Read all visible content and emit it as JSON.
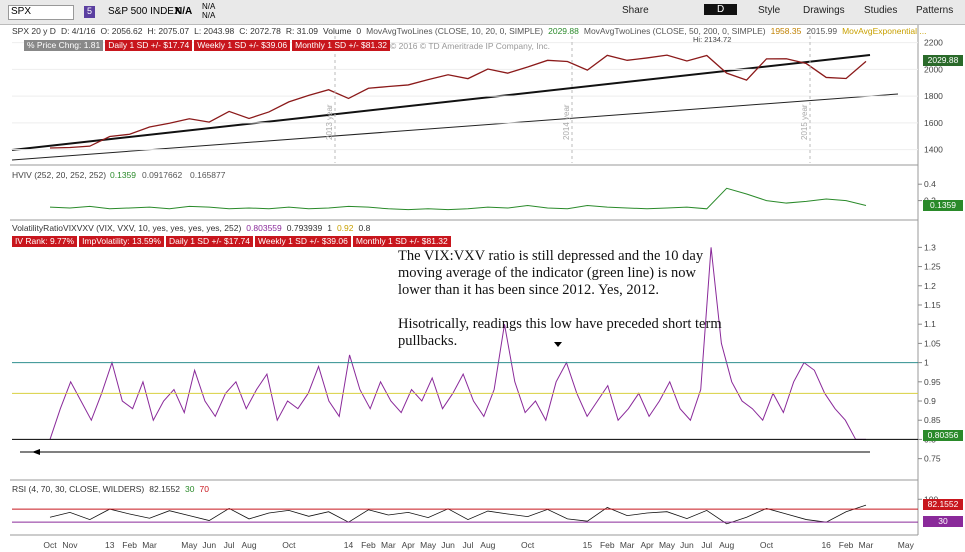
{
  "toolbar": {
    "symbol": "SPX",
    "badge": "5",
    "name": "S&P 500 INDEX",
    "last": "N/A",
    "change": [
      "N/A",
      "N/A"
    ],
    "buttons": [
      "Share",
      "D",
      "Style",
      "Drawings",
      "Studies",
      "Patterns"
    ]
  },
  "info_bar": [
    "SPX 20 y D",
    "D: 4/1/16",
    "O: 2056.62",
    "H: 2075.07",
    "L: 2043.98",
    "C: 2072.78",
    "R: 31.09",
    "Volume",
    "0",
    "MovAvgTwoLines (CLOSE, 10, 20, 0, SIMPLE)",
    "2029.88",
    "MovAvgTwoLines (CLOSE, 50, 200, 0, SIMPLE)",
    "1958.35",
    "2015.99",
    "MovAvgExponential ..."
  ],
  "price_panel": {
    "tags": [
      "% Price Chng: 1.81",
      "Daily 1 SD +/- $17.74",
      "Weekly 1 SD +/- $39.06",
      "Monthly 1 SD +/- $81.32"
    ],
    "copyright": "© 2016 © TD Ameritrade IP Company, Inc.",
    "high_label": "Hi: 2134.72",
    "year_labels": [
      "2013 year",
      "2014 year",
      "2015 year"
    ],
    "ylim": [
      1300,
      2250
    ],
    "yticks": [
      2200,
      2000,
      1800,
      1600,
      1400
    ],
    "last_label": "2029.88",
    "values": [
      1412,
      1416,
      1426,
      1498,
      1515,
      1569,
      1597,
      1631,
      1606,
      1686,
      1633,
      1682,
      1757,
      1806,
      1848,
      1783,
      1859,
      1872,
      1884,
      1924,
      1960,
      1931,
      2003,
      1972,
      2018,
      2068,
      2059,
      1995,
      2105,
      2068,
      2086,
      2107,
      2063,
      2104,
      1972,
      1920,
      2079,
      2080,
      2044,
      1940,
      1932,
      2060
    ]
  },
  "hv_panel": {
    "header": [
      "HVIV (252, 20, 252, 252)",
      "0.1359",
      "0.0917662",
      "0.165877"
    ],
    "ylim": [
      0,
      0.5
    ],
    "yticks": [
      0.4,
      0.2
    ],
    "last_label": "0.1359",
    "values": [
      0.12,
      0.11,
      0.13,
      0.1,
      0.11,
      0.12,
      0.1,
      0.13,
      0.12,
      0.1,
      0.11,
      0.1,
      0.12,
      0.1,
      0.11,
      0.13,
      0.12,
      0.1,
      0.09,
      0.1,
      0.09,
      0.1,
      0.12,
      0.11,
      0.14,
      0.11,
      0.1,
      0.14,
      0.12,
      0.11,
      0.1,
      0.11,
      0.12,
      0.1,
      0.35,
      0.28,
      0.2,
      0.17,
      0.19,
      0.22,
      0.2,
      0.14
    ]
  },
  "ratio_panel": {
    "header": [
      "VolatilityRatioVIXVXV (VIX, VXV, 10, yes, yes, yes, yes, 252)",
      "0.803559",
      "0.793939",
      "1",
      "0.92",
      "0.8"
    ],
    "levels": [
      1,
      0.92,
      0.8
    ],
    "tags": [
      "IV Rank: 9.77%",
      "ImpVolatility: 13.59%",
      "Daily 1 SD +/- $17.74",
      "Weekly 1 SD +/- $39.06",
      "Monthly 1 SD +/- $81.32"
    ],
    "annotation": [
      "The VIX:VXV ratio is still depressed and the 10 day moving average of the indicator (green line) is now lower than it has been since 2012.  Yes, 2012.",
      "Hisotrically, readings this low have preceded short term pullbacks."
    ],
    "ylim": [
      0.71,
      1.34
    ],
    "yticks": [
      1.3,
      1.25,
      1.2,
      1.15,
      1.1,
      1.05,
      1,
      0.95,
      0.9,
      0.85,
      0.8,
      0.75
    ],
    "last_label": "0.80356",
    "values": [
      0.8,
      0.88,
      0.95,
      0.9,
      0.85,
      0.92,
      1.0,
      0.9,
      0.88,
      0.95,
      0.85,
      0.9,
      0.93,
      0.87,
      0.98,
      0.9,
      0.86,
      0.92,
      0.95,
      0.88,
      0.93,
      0.97,
      0.85,
      0.9,
      0.88,
      0.92,
      0.99,
      0.9,
      0.86,
      1.02,
      0.93,
      0.88,
      0.95,
      0.9,
      0.87,
      0.93,
      0.9,
      0.96,
      0.88,
      0.92,
      0.97,
      0.9,
      0.86,
      0.93,
      1.1,
      0.95,
      0.87,
      0.9,
      0.85,
      0.95,
      1.0,
      0.92,
      0.86,
      0.9,
      0.94,
      0.85,
      0.88,
      0.92,
      0.86,
      0.9,
      0.95,
      0.88,
      0.85,
      0.93,
      1.3,
      1.05,
      0.95,
      0.9,
      0.88,
      0.85,
      0.92,
      0.87,
      0.95,
      1.0,
      0.98,
      0.92,
      0.88,
      0.85,
      0.8,
      0.8
    ]
  },
  "rsi_panel": {
    "header": [
      "RSI (4, 70, 30, CLOSE, WILDERS)",
      "82.1552",
      "30",
      "70"
    ],
    "levels": [
      30,
      70
    ],
    "ylim": [
      0,
      110
    ],
    "yticks": [
      100
    ],
    "labels": [
      "82.1552",
      "30"
    ],
    "values": [
      45,
      60,
      38,
      70,
      55,
      42,
      65,
      50,
      35,
      72,
      40,
      58,
      66,
      48,
      62,
      30,
      68,
      52,
      60,
      44,
      71,
      38,
      64,
      55,
      47,
      69,
      40,
      33,
      75,
      50,
      58,
      62,
      41,
      66,
      25,
      45,
      72,
      55,
      38,
      30,
      62,
      82
    ]
  },
  "x_axis": [
    "Oct",
    "Nov",
    "13",
    "Feb",
    "Mar",
    "May",
    "Jun",
    "Jul",
    "Aug",
    "Oct",
    "14",
    "Feb",
    "Mar",
    "Apr",
    "May",
    "Jun",
    "Jul",
    "Aug",
    "Oct",
    "15",
    "Feb",
    "Mar",
    "Apr",
    "May",
    "Jun",
    "Jul",
    "Aug",
    "Oct",
    "16",
    "Feb",
    "Mar",
    "May"
  ]
}
